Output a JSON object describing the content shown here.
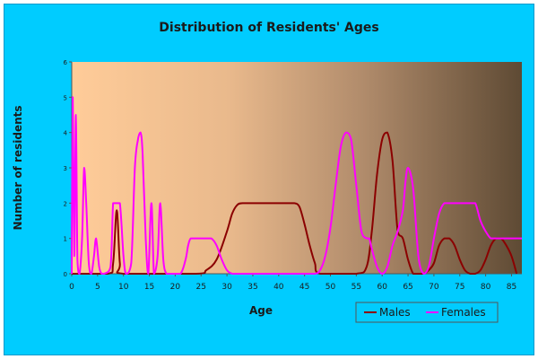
{
  "chart_data": {
    "type": "line",
    "title": "Distribution of Residents' Ages",
    "xlabel": "Age",
    "ylabel": "Number of residents",
    "xlim": [
      0,
      87
    ],
    "ylim": [
      0,
      6
    ],
    "xticks": [
      0,
      5,
      10,
      15,
      20,
      25,
      30,
      35,
      40,
      45,
      50,
      55,
      60,
      65,
      70,
      75,
      80,
      85
    ],
    "yticks": [
      0,
      1,
      2,
      3,
      4,
      5,
      6
    ],
    "grid": false,
    "legend_position": "bottom-right",
    "series": [
      {
        "name": "Males",
        "color": "#8b0000",
        "x": [
          0,
          7,
          8,
          8.7,
          9.3,
          10,
          24,
          26,
          28,
          30,
          31,
          32,
          33,
          35,
          38,
          40,
          42,
          43,
          44,
          45,
          46,
          47,
          48,
          55,
          57,
          58,
          59,
          60,
          61,
          62,
          63,
          64,
          65,
          66,
          67,
          68,
          69,
          70,
          71,
          72,
          73,
          74,
          75,
          76,
          77,
          78,
          79,
          80,
          81,
          82,
          83,
          84,
          85,
          86
        ],
        "values": [
          0,
          0,
          0.3,
          1.8,
          0.3,
          0,
          0,
          0.1,
          0.4,
          1.2,
          1.7,
          1.95,
          2,
          2,
          2,
          2,
          2,
          2,
          1.9,
          1.4,
          0.8,
          0.3,
          0,
          0,
          0.2,
          1.2,
          2.8,
          3.8,
          4,
          3.2,
          1.2,
          1,
          0.4,
          0,
          0,
          0,
          0.1,
          0.3,
          0.8,
          1,
          1,
          0.8,
          0.4,
          0.1,
          0,
          0,
          0.1,
          0.4,
          0.8,
          1,
          1,
          0.8,
          0.5,
          0
        ]
      },
      {
        "name": "Females",
        "color": "#ff00ff",
        "x": [
          0,
          0.2,
          0.5,
          0.8,
          1.1,
          1.5,
          2,
          2.4,
          2.8,
          3.3,
          3.8,
          4.3,
          4.7,
          5.3,
          5.8,
          6.3,
          7.5,
          8,
          8.5,
          9.3,
          10,
          10.5,
          11.5,
          12.2,
          12.8,
          13.3,
          13.7,
          14.3,
          14.8,
          15.4,
          15.9,
          16.6,
          17.1,
          17.7,
          18.3,
          19,
          21,
          22,
          22.5,
          23,
          24,
          25,
          26,
          27,
          28,
          29,
          30,
          31,
          32,
          35,
          40,
          45,
          47,
          48,
          49,
          50,
          51,
          52,
          53,
          54,
          55,
          56,
          57,
          57.5,
          58,
          59,
          60,
          61,
          62,
          63,
          64,
          64.5,
          65,
          66,
          67,
          68,
          69,
          70,
          71,
          72,
          73,
          74,
          75,
          76,
          77,
          78,
          79,
          80,
          81,
          82,
          83,
          84,
          85,
          86,
          87
        ],
        "values": [
          0,
          5,
          0.5,
          4.5,
          0.4,
          0,
          1,
          3,
          2,
          0.3,
          0,
          0.5,
          1,
          0.2,
          0,
          0,
          0.2,
          2,
          2,
          2,
          0.5,
          0,
          0.3,
          3,
          3.8,
          4,
          3.4,
          1,
          0,
          2,
          0,
          0.5,
          2,
          0.4,
          0,
          0,
          0,
          0.4,
          0.8,
          1,
          1,
          1,
          1,
          1,
          0.8,
          0.4,
          0.1,
          0,
          0,
          0,
          0,
          0,
          0,
          0.1,
          0.5,
          1.3,
          2.5,
          3.6,
          4,
          3.8,
          2.5,
          1.2,
          1,
          1,
          0.7,
          0.2,
          0,
          0.2,
          0.8,
          1.2,
          1.8,
          2.6,
          3,
          2.4,
          0.5,
          0,
          0.2,
          1,
          1.7,
          2,
          2,
          2,
          2,
          2,
          2,
          2,
          1.5,
          1.2,
          1,
          1,
          1,
          1,
          1,
          1,
          1
        ]
      }
    ]
  }
}
